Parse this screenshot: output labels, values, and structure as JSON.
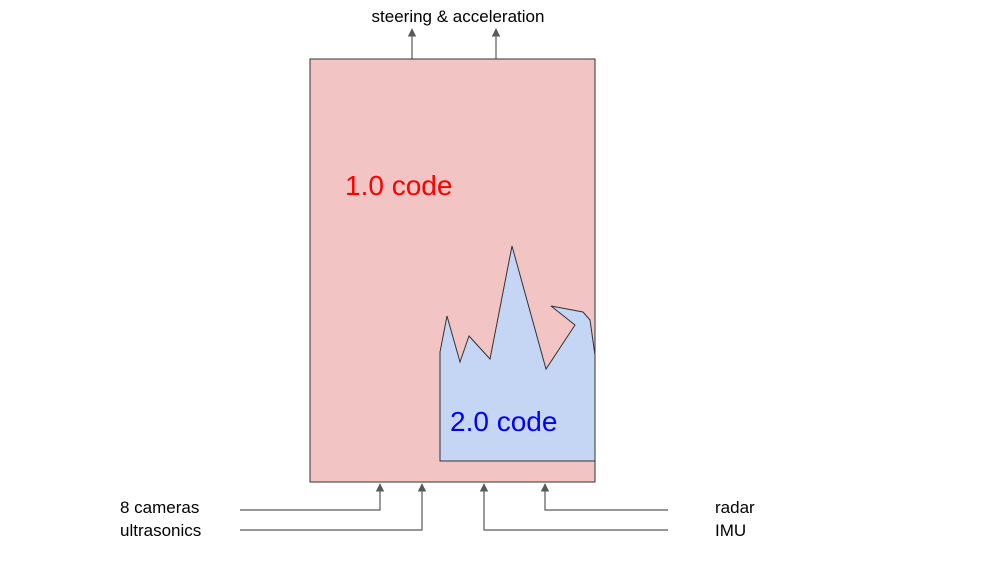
{
  "diagram": {
    "output_label": "steering & acceleration",
    "main_block_label": "1.0 code",
    "inner_block_label": "2.0 code",
    "inputs_left": [
      "8 cameras",
      "ultrasonics"
    ],
    "inputs_right": [
      "radar",
      "IMU"
    ]
  },
  "colors": {
    "main_fill": "#f2c4c4",
    "main_text": "#ff0000",
    "inner_fill": "#c5d6f5",
    "inner_text": "#0000ff",
    "arrow": "#595959",
    "label": "#000000"
  }
}
